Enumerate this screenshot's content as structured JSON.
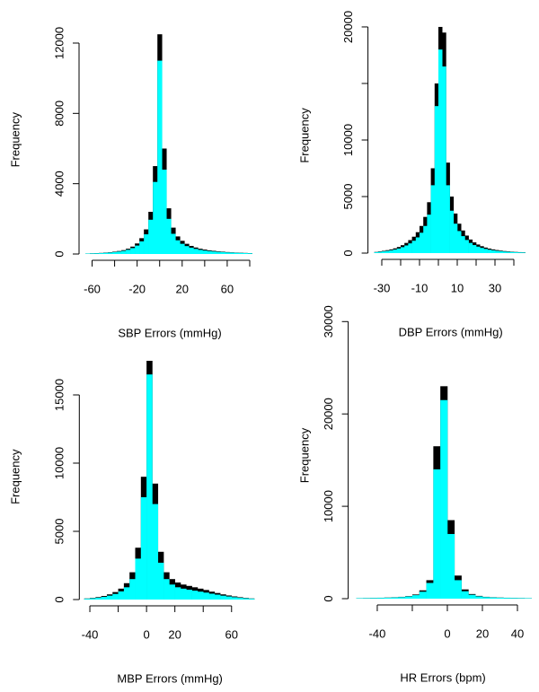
{
  "chart_data": [
    {
      "type": "histogram",
      "x_label": "SBP Errors (mmHg)",
      "y_label": "Frequency",
      "xlim": [
        -66,
        84
      ],
      "ylim": [
        0,
        13000
      ],
      "xticks": [
        -60,
        {
          "value": -40,
          "label": null
        },
        -20,
        {
          "value": 0,
          "label": null
        },
        20,
        {
          "value": 40,
          "label": null
        },
        60,
        {
          "value": 80,
          "label": null
        }
      ],
      "yticks": [
        0,
        4000,
        8000,
        12000
      ],
      "bins": [
        -66,
        -62,
        -58,
        -54,
        -50,
        -46,
        -42,
        -38,
        -34,
        -30,
        -26,
        -22,
        -18,
        -14,
        -10,
        -6,
        -2,
        2,
        6,
        10,
        14,
        18,
        22,
        26,
        30,
        34,
        38,
        42,
        46,
        50,
        54,
        58,
        62,
        66,
        70,
        74,
        78,
        82
      ],
      "series": [
        {
          "color": "#000000",
          "values": [
            30,
            40,
            50,
            60,
            80,
            100,
            130,
            170,
            220,
            300,
            420,
            600,
            900,
            1400,
            2400,
            5000,
            12500,
            6000,
            2600,
            1500,
            1000,
            750,
            580,
            460,
            370,
            300,
            250,
            210,
            180,
            150,
            130,
            110,
            95,
            80,
            70,
            60,
            50
          ]
        },
        {
          "color": "#00ffff",
          "values": [
            25,
            32,
            40,
            48,
            64,
            80,
            104,
            136,
            176,
            240,
            336,
            480,
            720,
            1120,
            1950,
            4100,
            11000,
            4800,
            2000,
            1150,
            780,
            580,
            450,
            360,
            290,
            235,
            195,
            165,
            140,
            120,
            105,
            90,
            78,
            66,
            58,
            50,
            42
          ]
        }
      ]
    },
    {
      "type": "histogram",
      "x_label": "DBP Errors (mmHg)",
      "y_label": "Frequency",
      "xlim": [
        -34,
        47
      ],
      "ylim": [
        0,
        20800
      ],
      "xticks": [
        -30,
        {
          "value": -20,
          "label": null
        },
        -10,
        {
          "value": 0,
          "label": null
        },
        10,
        {
          "value": 20,
          "label": null
        },
        30,
        {
          "value": 40,
          "label": null
        }
      ],
      "yticks": [
        0,
        5000,
        10000,
        {
          "value": 15000,
          "label": null
        },
        20000
      ],
      "bins": [
        -34,
        -32,
        -30,
        -28,
        -26,
        -24,
        -22,
        -20,
        -18,
        -16,
        -14,
        -12,
        -10,
        -8,
        -6,
        -4,
        -2,
        0,
        2,
        4,
        6,
        8,
        10,
        12,
        14,
        16,
        18,
        20,
        22,
        24,
        26,
        28,
        30,
        32,
        34,
        36,
        38,
        40,
        42,
        44,
        46
      ],
      "series": [
        {
          "color": "#000000",
          "values": [
            100,
            150,
            200,
            260,
            330,
            420,
            540,
            700,
            900,
            1150,
            1450,
            1850,
            2400,
            3200,
            4500,
            7500,
            15000,
            20000,
            19500,
            8000,
            5000,
            3500,
            2600,
            2000,
            1550,
            1200,
            950,
            760,
            610,
            490,
            400,
            330,
            270,
            220,
            180,
            150,
            120,
            100,
            85,
            70
          ]
        },
        {
          "color": "#00ffff",
          "values": [
            75,
            110,
            150,
            195,
            250,
            315,
            405,
            525,
            675,
            860,
            1090,
            1390,
            1800,
            2400,
            3400,
            6000,
            13000,
            18000,
            16500,
            6000,
            3750,
            2600,
            1950,
            1500,
            1160,
            900,
            710,
            570,
            460,
            370,
            300,
            250,
            200,
            165,
            135,
            110,
            90,
            75,
            64,
            52
          ]
        }
      ]
    },
    {
      "type": "histogram",
      "x_label": "MBP Errors (mmHg)",
      "y_label": "Frequency",
      "xlim": [
        -43,
        76
      ],
      "ylim": [
        0,
        18000
      ],
      "xticks": [
        -40,
        {
          "value": -20,
          "label": null
        },
        0,
        20,
        {
          "value": 40,
          "label": null
        },
        60
      ],
      "yticks": [
        0,
        5000,
        10000,
        15000
      ],
      "bins": [
        -44,
        -40,
        -36,
        -32,
        -28,
        -24,
        -20,
        -16,
        -12,
        -8,
        -4,
        0,
        4,
        8,
        12,
        16,
        20,
        24,
        28,
        32,
        36,
        40,
        44,
        48,
        52,
        56,
        60,
        64,
        68,
        72,
        76
      ],
      "series": [
        {
          "color": "#000000",
          "values": [
            80,
            120,
            180,
            260,
            380,
            550,
            800,
            1200,
            2000,
            3800,
            9000,
            17500,
            8500,
            3500,
            2000,
            1500,
            1250,
            1100,
            1000,
            900,
            800,
            700,
            580,
            480,
            380,
            300,
            230,
            170,
            120,
            80
          ]
        },
        {
          "color": "#00ffff",
          "values": [
            60,
            90,
            135,
            195,
            285,
            410,
            600,
            900,
            1500,
            3000,
            7500,
            16500,
            7000,
            2700,
            1500,
            1100,
            900,
            800,
            720,
            650,
            580,
            510,
            430,
            360,
            285,
            225,
            170,
            125,
            90,
            60
          ]
        }
      ]
    },
    {
      "type": "histogram",
      "x_label": "HR Errors (bpm)",
      "y_label": "Frequency",
      "xlim": [
        -53,
        48
      ],
      "ylim": [
        0,
        31000
      ],
      "xticks": [
        -40,
        {
          "value": -20,
          "label": null
        },
        0,
        20,
        40
      ],
      "yticks": [
        0,
        10000,
        20000,
        30000
      ],
      "bins": [
        -52,
        -48,
        -44,
        -40,
        -36,
        -32,
        -28,
        -24,
        -20,
        -16,
        -12,
        -8,
        -4,
        0,
        4,
        8,
        12,
        16,
        20,
        24,
        28,
        32,
        36,
        40,
        44,
        48
      ],
      "series": [
        {
          "color": "#000000",
          "values": [
            60,
            70,
            80,
            100,
            120,
            150,
            200,
            280,
            450,
            900,
            2000,
            16500,
            23000,
            8500,
            2500,
            1000,
            500,
            300,
            200,
            150,
            120,
            100,
            80,
            70,
            60
          ]
        },
        {
          "color": "#00ffff",
          "values": [
            50,
            60,
            70,
            85,
            100,
            125,
            170,
            240,
            380,
            750,
            1700,
            14000,
            21500,
            7000,
            2000,
            800,
            420,
            250,
            170,
            125,
            100,
            85,
            70,
            60,
            50
          ]
        }
      ]
    }
  ]
}
